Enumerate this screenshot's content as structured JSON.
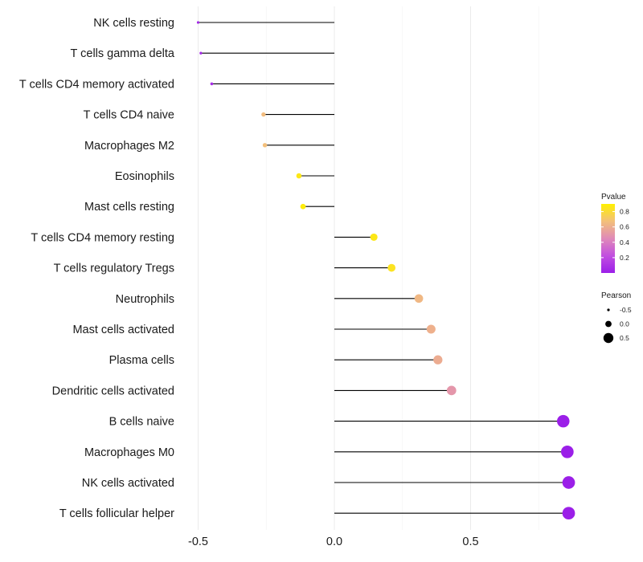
{
  "chart_data": {
    "type": "lollipop",
    "title": "",
    "xlabel": "",
    "ylabel": "",
    "xlim": [
      -0.5,
      0.87
    ],
    "xticks": [
      -0.5,
      0.0,
      0.5
    ],
    "xtick_labels": [
      "-0.5",
      "0.0",
      "0.5"
    ],
    "categories": [
      "NK cells resting",
      "T cells gamma delta",
      "T cells CD4 memory activated",
      "T cells CD4 naive",
      "Macrophages M2",
      "Eosinophils",
      "Mast cells resting",
      "T cells CD4 memory resting",
      "T cells regulatory  Tregs ",
      "Neutrophils",
      "Mast cells activated",
      "Plasma cells",
      "Dendritic cells activated",
      "B cells naive",
      "Macrophages M0",
      "NK cells activated",
      "T cells follicular helper"
    ],
    "pearson": [
      -0.5,
      -0.49,
      -0.45,
      -0.26,
      -0.255,
      -0.13,
      -0.115,
      0.145,
      0.21,
      0.31,
      0.355,
      0.38,
      0.43,
      0.84,
      0.855,
      0.86,
      0.86
    ],
    "pvalue": [
      0.04,
      0.05,
      0.07,
      0.66,
      0.67,
      0.86,
      0.88,
      0.86,
      0.84,
      0.64,
      0.61,
      0.59,
      0.5,
      0.001,
      0.001,
      0.001,
      0.001
    ],
    "legend_pvalue": {
      "title": "Pvalue",
      "ticks": [
        0.8,
        0.6,
        0.4,
        0.2
      ],
      "tick_labels": [
        "0.8",
        "0.6",
        "0.4",
        "0.2"
      ],
      "range": [
        0.0,
        0.9
      ],
      "color_low": "#9b1fe8",
      "color_high": "#fff000"
    },
    "legend_pearson": {
      "title": "Pearson",
      "values": [
        -0.5,
        0.0,
        0.5
      ],
      "labels": [
        "-0.5",
        "0.0",
        "0.5"
      ]
    },
    "stem_color": "#000000"
  }
}
